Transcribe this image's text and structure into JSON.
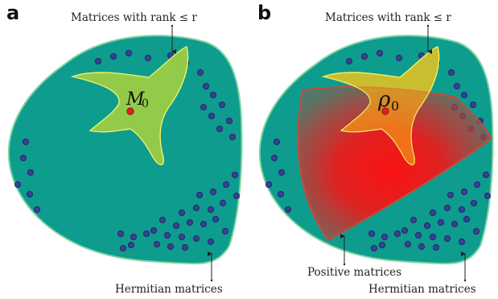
{
  "figure": {
    "panel_a": {
      "letter": "a",
      "rank_label": "Matrices with rank ≤ r",
      "hermitian_label": "Hermitian matrices",
      "point_symbol": "M",
      "point_subscript": "0"
    },
    "panel_b": {
      "letter": "b",
      "rank_label": "Matrices with rank ≤ r",
      "positive_label": "Positive matrices",
      "hermitian_label": "Hermitian matrices",
      "point_symbol": "ρ",
      "point_subscript": "0"
    }
  },
  "colors": {
    "hermitian_fill": "#0e9c8e",
    "hermitian_stroke": "#7fd4a0",
    "rank_fill": "#9ccc47",
    "rank_stroke": "#e8f06a",
    "positive_center": "#ff1010",
    "positive_edge": "#c84a3a",
    "point_fill": "#e02020",
    "dot_fill": "#3a3f98"
  }
}
